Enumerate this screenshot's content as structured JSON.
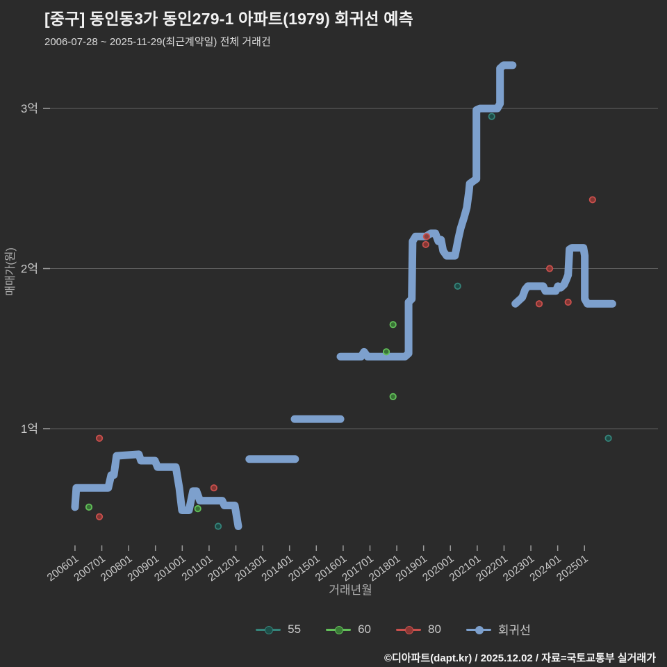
{
  "header": {
    "title": "[중구] 동인동3가 동인279-1 아파트(1979) 회귀선 예측",
    "subtitle": "2006-07-28 ~ 2025-11-29(최근계약일) 전체 거래건"
  },
  "footer": {
    "credit": "©디아파트(dapt.kr) / 2025.12.02 / 자료=국토교통부 실거래가"
  },
  "colors": {
    "background": "#2b2b2b",
    "grid": "#5f5f5f",
    "tick": "#9a9a9a",
    "tick_text": "#c9c9c9",
    "regression_blue": "#7da0cd",
    "teal_55": "#35847a",
    "green_60": "#63c05a",
    "red_80": "#c9504d"
  },
  "chart_data": {
    "type": "line",
    "title": "[중구] 동인동3가 동인279-1 아파트(1979) 회귀선 예측",
    "xlabel": "거래년월",
    "ylabel": "매매가(원)",
    "x_domain": [
      2004.81,
      2027.74
    ],
    "y_domain": [
      0.249,
      3.417
    ],
    "grid": "horizontal-only",
    "legend_position": "bottom-center",
    "y_ticks": [
      {
        "value": 1,
        "label": "1억"
      },
      {
        "value": 2,
        "label": "2억"
      },
      {
        "value": 3,
        "label": "3억"
      }
    ],
    "x_ticks": [
      {
        "year": 2006,
        "label": "200601"
      },
      {
        "year": 2007,
        "label": "200701"
      },
      {
        "year": 2008,
        "label": "200801"
      },
      {
        "year": 2009,
        "label": "200901"
      },
      {
        "year": 2010,
        "label": "201001"
      },
      {
        "year": 2011,
        "label": "201101"
      },
      {
        "year": 2012,
        "label": "201201"
      },
      {
        "year": 2013,
        "label": "201301"
      },
      {
        "year": 2014,
        "label": "201401"
      },
      {
        "year": 2015,
        "label": "201501"
      },
      {
        "year": 2016,
        "label": "201601"
      },
      {
        "year": 2017,
        "label": "201701"
      },
      {
        "year": 2018,
        "label": "201801"
      },
      {
        "year": 2019,
        "label": "201901"
      },
      {
        "year": 2020,
        "label": "202001"
      },
      {
        "year": 2021,
        "label": "202101"
      },
      {
        "year": 2022,
        "label": "202201"
      },
      {
        "year": 2023,
        "label": "202301"
      },
      {
        "year": 2024,
        "label": "202401"
      },
      {
        "year": 2025,
        "label": "202501"
      }
    ],
    "series": [
      {
        "name": "55",
        "type": "scatter",
        "unit": "억원",
        "color": "#35847a",
        "fill": "#1d4f49",
        "points": [
          [
            2011.34,
            0.39
          ],
          [
            2020.27,
            1.89
          ],
          [
            2021.54,
            2.95
          ],
          [
            2025.89,
            0.94
          ]
        ]
      },
      {
        "name": "60",
        "type": "scatter",
        "unit": "억원",
        "color": "#63c05a",
        "fill": "#3a7a36",
        "points": [
          [
            2006.52,
            0.51
          ],
          [
            2010.58,
            0.5
          ],
          [
            2017.61,
            1.48
          ],
          [
            2017.86,
            1.65
          ],
          [
            2017.86,
            1.2
          ]
        ]
      },
      {
        "name": "80",
        "type": "scatter",
        "unit": "억원",
        "color": "#c9504d",
        "fill": "#8c3734",
        "points": [
          [
            2006.91,
            0.94
          ],
          [
            2006.91,
            0.45
          ],
          [
            2011.18,
            0.63
          ],
          [
            2019.08,
            2.15
          ],
          [
            2019.11,
            2.2
          ],
          [
            2023.31,
            1.78
          ],
          [
            2023.7,
            2.0
          ],
          [
            2024.39,
            1.79
          ],
          [
            2025.3,
            2.43
          ]
        ]
      },
      {
        "name": "회귀선",
        "type": "line",
        "unit": "억원",
        "color": "#7da0cd",
        "width": 11,
        "segments": [
          [
            [
              2006.0,
              0.51
            ],
            [
              2006.05,
              0.63
            ],
            [
              2007.24,
              0.63
            ],
            [
              2007.35,
              0.71
            ],
            [
              2007.45,
              0.71
            ],
            [
              2007.55,
              0.83
            ],
            [
              2008.38,
              0.84
            ],
            [
              2008.46,
              0.8
            ],
            [
              2008.98,
              0.8
            ],
            [
              2009.08,
              0.76
            ],
            [
              2009.76,
              0.76
            ],
            [
              2009.89,
              0.63
            ],
            [
              2009.99,
              0.49
            ],
            [
              2010.25,
              0.49
            ],
            [
              2010.4,
              0.61
            ],
            [
              2010.53,
              0.61
            ],
            [
              2010.66,
              0.55
            ],
            [
              2011.49,
              0.55
            ],
            [
              2011.57,
              0.52
            ],
            [
              2011.96,
              0.52
            ],
            [
              2012.09,
              0.39
            ]
          ],
          [
            [
              2012.5,
              0.81
            ],
            [
              2014.21,
              0.81
            ]
          ],
          [
            [
              2014.19,
              1.06
            ],
            [
              2015.9,
              1.06
            ]
          ],
          [
            [
              2015.9,
              1.45
            ],
            [
              2016.67,
              1.45
            ],
            [
              2016.78,
              1.48
            ],
            [
              2016.91,
              1.45
            ],
            [
              2018.31,
              1.45
            ],
            [
              2018.44,
              1.47
            ],
            [
              2018.44,
              1.79
            ],
            [
              2018.56,
              1.81
            ],
            [
              2018.59,
              2.17
            ],
            [
              2018.7,
              2.2
            ],
            [
              2019.08,
              2.2
            ],
            [
              2019.27,
              2.22
            ],
            [
              2019.44,
              2.22
            ],
            [
              2019.55,
              2.17
            ],
            [
              2019.65,
              2.18
            ],
            [
              2019.73,
              2.11
            ],
            [
              2019.86,
              2.08
            ],
            [
              2020.17,
              2.08
            ],
            [
              2020.3,
              2.19
            ],
            [
              2020.38,
              2.25
            ],
            [
              2020.51,
              2.32
            ],
            [
              2020.61,
              2.38
            ],
            [
              2020.69,
              2.48
            ],
            [
              2020.72,
              2.53
            ],
            [
              2020.97,
              2.56
            ],
            [
              2020.97,
              2.99
            ],
            [
              2021.1,
              3.0
            ],
            [
              2021.75,
              3.0
            ],
            [
              2021.85,
              3.03
            ],
            [
              2021.85,
              3.25
            ],
            [
              2021.98,
              3.27
            ],
            [
              2022.32,
              3.27
            ]
          ],
          [
            [
              2022.42,
              1.78
            ],
            [
              2022.68,
              1.82
            ],
            [
              2022.79,
              1.87
            ],
            [
              2022.89,
              1.89
            ],
            [
              2023.46,
              1.89
            ],
            [
              2023.54,
              1.86
            ],
            [
              2023.93,
              1.86
            ],
            [
              2024.01,
              1.89
            ],
            [
              2024.11,
              1.88
            ],
            [
              2024.24,
              1.9
            ],
            [
              2024.32,
              1.93
            ],
            [
              2024.39,
              1.96
            ],
            [
              2024.44,
              2.12
            ],
            [
              2024.54,
              2.13
            ],
            [
              2024.96,
              2.13
            ],
            [
              2025.01,
              2.08
            ],
            [
              2025.01,
              1.81
            ],
            [
              2025.11,
              1.78
            ],
            [
              2026.04,
              1.78
            ]
          ]
        ]
      }
    ]
  }
}
